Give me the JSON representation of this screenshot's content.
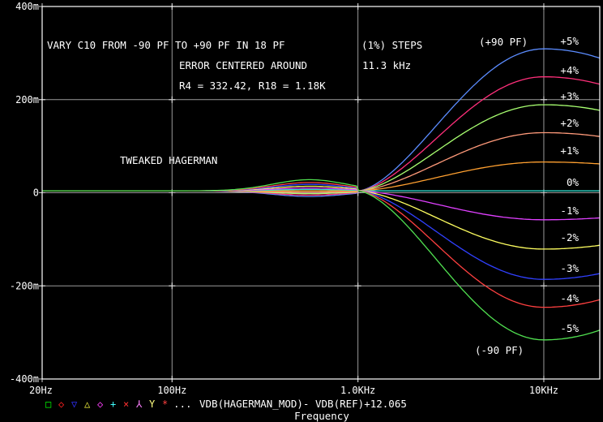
{
  "chart_data": {
    "type": "line",
    "xscale": "log",
    "xlim": [
      20,
      20000
    ],
    "ylim": [
      -0.4,
      0.4
    ],
    "xticks": [
      {
        "value": 20,
        "label": "20Hz"
      },
      {
        "value": 100,
        "label": "100Hz"
      },
      {
        "value": 1000,
        "label": "1.0KHz"
      },
      {
        "value": 10000,
        "label": "10KHz"
      }
    ],
    "yticks": [
      {
        "value": 0.4,
        "label": "400m"
      },
      {
        "value": 0.2,
        "label": "200m"
      },
      {
        "value": 0,
        "label": "0"
      },
      {
        "value": -0.2,
        "label": "-200m"
      },
      {
        "value": -0.4,
        "label": "-400m"
      }
    ],
    "grid": true,
    "xlabel": "Frequency",
    "trace_label": "VDB(HAGERMAN_MOD)- VDB(REF)+12.065",
    "trace_markers": [
      "□",
      "◇",
      "▽",
      "△",
      "◇",
      "+",
      "×",
      "⅄",
      "Y",
      "*"
    ],
    "trace_marker_colors": [
      "#00ff00",
      "#ff2020",
      "#3030ff",
      "#ffff40",
      "#ff40ff",
      "#40ffff",
      "#ff3030",
      "#ff80ff",
      "#ffff80",
      "#ff4040"
    ],
    "trace_ellipsis": "...",
    "annotations": [
      "VARY C10 FROM -90 PF TO +90 PF IN 18 PF",
      "(1%) STEPS",
      "ERROR CENTERED AROUND",
      "11.3 kHz",
      "R4 = 332.42, R18 = 1.18K",
      "TWEAKED HAGERMAN",
      "(+90 PF)",
      "(-90 PF)"
    ],
    "series": [
      {
        "label": "+5%",
        "color": "#5b8cff",
        "low_bump": -0.012,
        "peak": 0.305
      },
      {
        "label": "+4%",
        "color": "#ff2f7a",
        "low_bump": -0.009,
        "peak": 0.245
      },
      {
        "label": "+3%",
        "color": "#a8ff70",
        "low_bump": -0.006,
        "peak": 0.185
      },
      {
        "label": "+2%",
        "color": "#ff9a7a",
        "low_bump": -0.003,
        "peak": 0.125
      },
      {
        "label": "+1%",
        "color": "#ffa030",
        "low_bump": 0.0,
        "peak": 0.062
      },
      {
        "label": "0%",
        "color": "#30e0d0",
        "low_bump": 0.003,
        "peak": 0.0
      },
      {
        "label": "-1%",
        "color": "#e040ff",
        "low_bump": 0.006,
        "peak": -0.062
      },
      {
        "label": "-2%",
        "color": "#ffff60",
        "low_bump": 0.01,
        "peak": -0.125
      },
      {
        "label": "-3%",
        "color": "#3040ff",
        "low_bump": 0.014,
        "peak": -0.19
      },
      {
        "label": "-4%",
        "color": "#ff4040",
        "low_bump": 0.018,
        "peak": -0.25
      },
      {
        "label": "-5%",
        "color": "#50e050",
        "low_bump": 0.024,
        "peak": -0.32
      }
    ]
  }
}
